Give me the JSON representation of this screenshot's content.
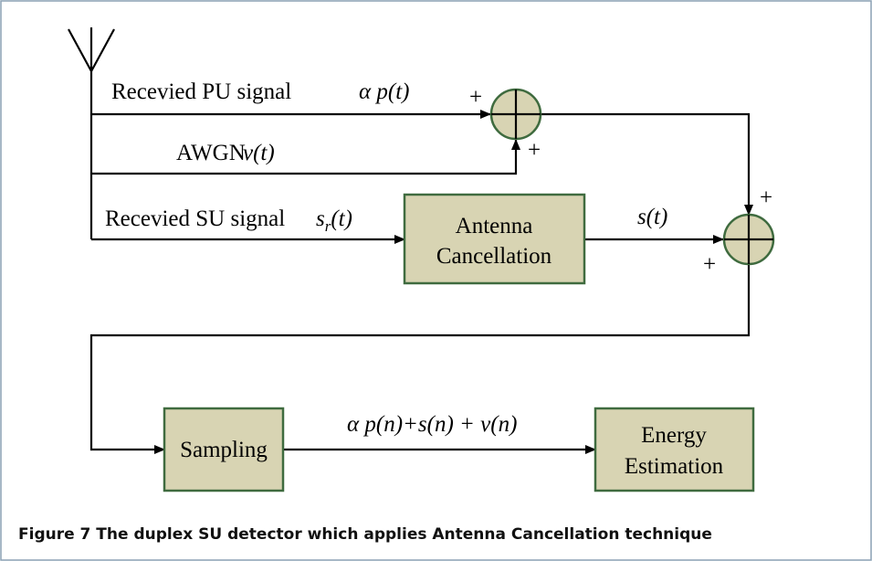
{
  "labels": {
    "pu_signal": "Recevied PU signal",
    "pu_term": "α p(t)",
    "awgn": "AWGN",
    "awgn_term": "v(t)",
    "su_signal": "Recevied SU signal",
    "su_term": {
      "base": "s",
      "sub": "r",
      "rest": "(t)"
    },
    "cancel_out": "s(t)",
    "sum_out": "α p(n)+s(n) + v(n)"
  },
  "blocks": [
    {
      "lines": [
        "Antenna",
        "Cancellation"
      ]
    },
    {
      "lines": [
        "Sampling"
      ]
    },
    {
      "lines": [
        "Energy",
        "Estimation"
      ]
    }
  ],
  "plus_signs": [
    "+",
    "+",
    "+",
    "+"
  ],
  "caption": "Figure 7 The duplex SU detector which applies Antenna Cancellation technique"
}
